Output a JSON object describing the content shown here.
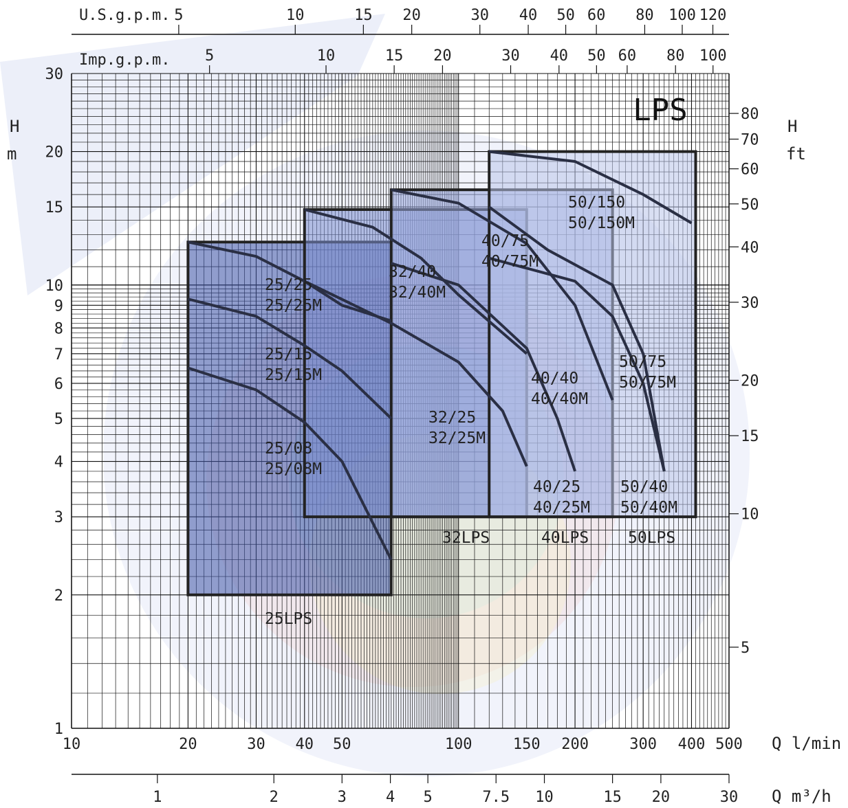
{
  "chart_data": {
    "type": "line",
    "title": "LPS",
    "x_axes": {
      "flow_lmin": {
        "label": "Q l/min",
        "ticks": [
          "10",
          "20",
          "30",
          "40",
          "50",
          "100",
          "150",
          "200",
          "300",
          "400",
          "500"
        ],
        "range": [
          10,
          500
        ],
        "scale": "log"
      },
      "flow_m3h": {
        "label": "Q m³/h",
        "ticks": [
          "1",
          "2",
          "3",
          "4",
          "5",
          "7.5",
          "10",
          "15",
          "20",
          "30"
        ]
      },
      "usgpm": {
        "label": "U.S.g.p.m.",
        "ticks": [
          "5",
          "10",
          "15",
          "20",
          "30",
          "40",
          "50",
          "60",
          "80",
          "100",
          "120"
        ]
      },
      "impgpm": {
        "label": "Imp.g.p.m.",
        "ticks": [
          "5",
          "10",
          "15",
          "20",
          "30",
          "40",
          "50",
          "60",
          "80",
          "100"
        ]
      }
    },
    "y_axes": {
      "head_m": {
        "label_top": "H",
        "label_bottom": "m",
        "ticks": [
          "1",
          "2",
          "3",
          "4",
          "5",
          "6",
          "7",
          "8",
          "9",
          "10",
          "15",
          "20",
          "30"
        ],
        "range": [
          1,
          30
        ],
        "scale": "log"
      },
      "head_ft": {
        "label_top": "H",
        "label_bottom": "ft",
        "ticks": [
          "5",
          "10",
          "15",
          "20",
          "30",
          "40",
          "50",
          "60",
          "70",
          "80"
        ]
      }
    },
    "grid": true,
    "families": [
      {
        "name": "25LPS",
        "color": "#3f55a8",
        "region": {
          "q_min": 20,
          "q_max": 67,
          "h_min": 2.0,
          "h_max": 12.5
        }
      },
      {
        "name": "32LPS",
        "color": "#7c8ed0",
        "region": {
          "q_min": 40,
          "q_max": 150,
          "h_min": 3.0,
          "h_max": 14.8
        }
      },
      {
        "name": "40LPS",
        "color": "#98a6dd",
        "region": {
          "q_min": 67,
          "q_max": 250,
          "h_min": 3.0,
          "h_max": 16.4
        }
      },
      {
        "name": "50LPS",
        "color": "#b9c4ea",
        "region": {
          "q_min": 120,
          "q_max": 410,
          "h_min": 3.0,
          "h_max": 20.0
        }
      }
    ],
    "series": [
      {
        "name": "25/25",
        "label2": "25/25M",
        "x": [
          20,
          30,
          40,
          50,
          67
        ],
        "y": [
          12.5,
          11.6,
          10.2,
          9.0,
          8.3
        ]
      },
      {
        "name": "25/15",
        "label2": "25/15M",
        "x": [
          20,
          30,
          40,
          50,
          67
        ],
        "y": [
          9.3,
          8.5,
          7.3,
          6.4,
          5.0
        ]
      },
      {
        "name": "25/08",
        "label2": "25/08M",
        "x": [
          20,
          30,
          40,
          50,
          67
        ],
        "y": [
          6.5,
          5.8,
          4.9,
          4.0,
          2.4
        ]
      },
      {
        "name": "32/40",
        "label2": "32/40M",
        "x": [
          40,
          60,
          80,
          100,
          150
        ],
        "y": [
          14.8,
          13.5,
          11.5,
          9.5,
          7.0
        ]
      },
      {
        "name": "32/25",
        "label2": "32/25M",
        "x": [
          40,
          67,
          100,
          130,
          150
        ],
        "y": [
          10.2,
          8.2,
          6.7,
          5.2,
          3.9
        ]
      },
      {
        "name": "40/40",
        "label2": "40/40M",
        "x": [
          67,
          100,
          150,
          200,
          250
        ],
        "y": [
          16.4,
          15.3,
          12.4,
          9.0,
          5.5
        ]
      },
      {
        "name": "40/25",
        "label2": "40/25M",
        "x": [
          67,
          100,
          150,
          180,
          200
        ],
        "y": [
          11.2,
          10.0,
          7.2,
          5.0,
          3.8
        ]
      },
      {
        "name": "50/75",
        "label2": "50/75M",
        "x": [
          120,
          170,
          250,
          300,
          340
        ],
        "y": [
          15.0,
          12.0,
          10.0,
          7.0,
          3.8
        ]
      },
      {
        "name": "50/40",
        "label2": "50/40M",
        "x": [
          120,
          200,
          250,
          300,
          340
        ],
        "y": [
          11.5,
          10.2,
          8.5,
          6.0,
          3.8
        ]
      },
      {
        "name": "50/150",
        "label2": "50/150M",
        "x": [
          120,
          200,
          300,
          400
        ],
        "y": [
          20.0,
          19.0,
          16.0,
          13.8
        ]
      }
    ]
  }
}
